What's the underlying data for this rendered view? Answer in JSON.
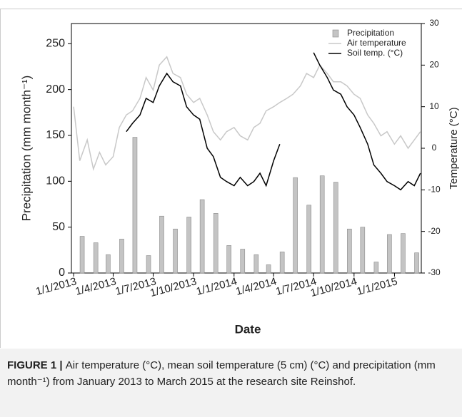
{
  "chart_data": {
    "type": "bar-line",
    "x_label": "Date",
    "y_label": "Precipitation (mm month⁻¹)",
    "y2_label": "Temperature (°C)",
    "xlim": [
      "27/12/2012",
      "3/3/2015"
    ],
    "xticks": [
      "1/1/2013",
      "1/4/2013",
      "1/7/2013",
      "1/10/2013",
      "1/1/2014",
      "1/4/2014",
      "1/7/2014",
      "1/10/2014",
      "1/1/2015"
    ],
    "ylim": [
      0,
      272
    ],
    "yticks": [
      0,
      50,
      100,
      150,
      200,
      250
    ],
    "y2lim": [
      -30,
      30
    ],
    "y2ticks": [
      -30,
      -20,
      -10,
      0,
      10,
      20,
      30
    ],
    "legend": "upper right",
    "x": [
      "1/1/2013",
      "15/1/2013",
      "1/2/2013",
      "15/2/2013",
      "1/3/2013",
      "15/3/2013",
      "1/4/2013",
      "15/4/2013",
      "1/5/2013",
      "15/5/2013",
      "1/6/2013",
      "15/6/2013",
      "1/7/2013",
      "15/7/2013",
      "1/8/2013",
      "15/8/2013",
      "1/9/2013",
      "15/9/2013",
      "1/10/2013",
      "15/10/2013",
      "1/11/2013",
      "15/11/2013",
      "1/12/2013",
      "15/12/2013",
      "1/1/2014",
      "15/1/2014",
      "1/2/2014",
      "15/2/2014",
      "1/3/2014",
      "15/3/2014",
      "1/4/2014",
      "15/4/2014",
      "1/5/2014",
      "15/5/2014",
      "1/6/2014",
      "15/6/2014",
      "1/7/2014",
      "15/7/2014",
      "1/8/2014",
      "15/8/2014",
      "1/9/2014",
      "15/9/2014",
      "1/10/2014",
      "15/10/2014",
      "1/11/2014",
      "15/11/2014",
      "1/12/2014",
      "15/12/2014",
      "1/1/2015",
      "15/1/2015",
      "1/2/2015",
      "15/2/2015",
      "1/3/2015"
    ],
    "series": [
      {
        "name": "Precipitation",
        "type": "bar",
        "color": "#c4c4c4",
        "x": [
          "1/1/2013",
          "1/2/2013",
          "1/3/2013",
          "1/4/2013",
          "1/5/2013",
          "1/6/2013",
          "1/7/2013",
          "1/8/2013",
          "1/9/2013",
          "1/10/2013",
          "1/11/2013",
          "1/12/2013",
          "1/1/2014",
          "1/2/2014",
          "1/3/2014",
          "1/4/2014",
          "1/5/2014",
          "1/6/2014",
          "1/7/2014",
          "1/8/2014",
          "1/9/2014",
          "1/10/2014",
          "1/11/2014",
          "1/12/2014",
          "1/1/2015",
          "1/2/2015"
        ],
        "values": [
          40,
          33,
          20,
          37,
          148,
          19,
          62,
          48,
          61,
          80,
          65,
          30,
          26,
          20,
          9,
          23,
          104,
          74,
          106,
          99,
          48,
          50,
          12,
          42,
          43,
          22
        ]
      },
      {
        "name": "Air temperature",
        "type": "line",
        "axis": "y2",
        "color": "#c8c8c8",
        "values": [
          10,
          -3,
          2,
          -5,
          -1,
          -4,
          -2,
          5,
          8,
          9,
          12,
          17,
          14,
          20,
          22,
          18,
          17,
          13,
          11,
          12,
          8,
          4,
          2,
          4,
          5,
          3,
          2,
          5,
          6,
          9,
          10,
          11,
          12,
          13,
          15,
          18,
          17,
          20,
          18,
          16,
          16,
          15,
          13,
          12,
          8,
          6,
          3,
          4,
          1,
          3,
          0,
          2,
          4
        ]
      },
      {
        "name": "Soil temp. (°C)",
        "type": "line",
        "axis": "y2",
        "color": "#000000",
        "values": [
          null,
          null,
          null,
          null,
          null,
          null,
          null,
          null,
          4,
          6,
          8,
          12,
          11,
          15,
          18,
          16,
          15,
          10,
          8,
          7,
          0,
          -2,
          -7,
          -8,
          -9,
          -7,
          -9,
          -8,
          -6,
          -9,
          -3,
          1,
          null,
          null,
          null,
          null,
          23,
          20,
          17,
          14,
          13,
          10,
          8,
          5,
          1,
          -4,
          -6,
          -8,
          -9,
          -10,
          -8,
          -9,
          -6
        ]
      }
    ]
  },
  "caption": {
    "label": "FIGURE 1 | ",
    "text": "Air temperature (°C), mean soil temperature (5 cm) (°C) and precipitation (mm month⁻¹) from January 2013 to March 2015 at the research site Reinshof."
  }
}
